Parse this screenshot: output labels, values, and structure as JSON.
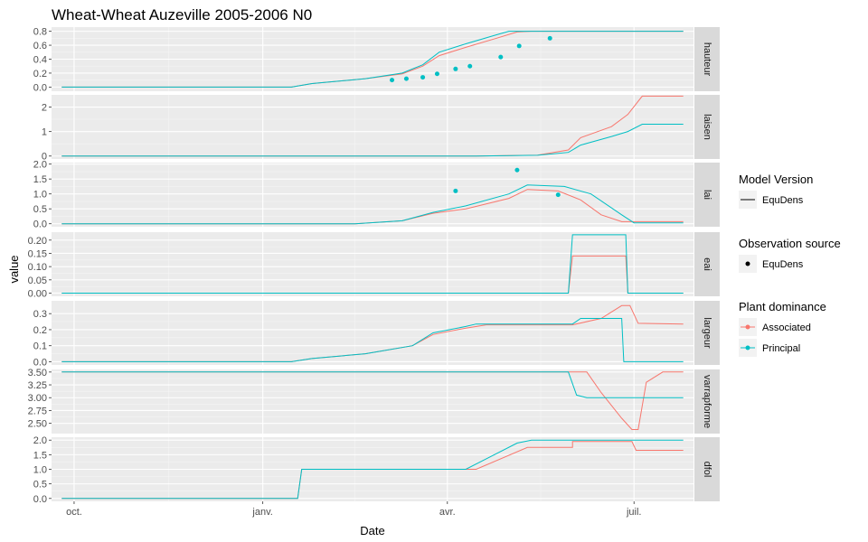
{
  "chart_data": {
    "type": "line",
    "title": "Wheat-Wheat Auzeville 2005-2006 N0",
    "xlabel": "Date",
    "ylabel": "value",
    "x_ticks": [
      "oct.",
      "janv.",
      "avr.",
      "juil."
    ],
    "x_tick_dates": [
      "2005-10-01",
      "2006-01-01",
      "2006-04-01",
      "2006-07-01"
    ],
    "xlim": [
      "2005-09-20",
      "2006-07-30"
    ],
    "grid": true,
    "legend_position": "right",
    "colors": {
      "Associated": "#F8766D",
      "Principal": "#00BFC4",
      "panel_bg": "#EBEBEB",
      "strip_bg": "#D9D9D9"
    },
    "legend": {
      "model_version": {
        "title": "Model Version",
        "items": [
          "EquDens"
        ]
      },
      "observation_source": {
        "title": "Observation source",
        "items": [
          "EquDens"
        ]
      },
      "plant_dominance": {
        "title": "Plant dominance",
        "items": [
          "Associated",
          "Principal"
        ]
      }
    },
    "panels": [
      {
        "name": "hauteur",
        "ylim": [
          -0.06,
          0.86
        ],
        "ticks": [
          0.0,
          0.2,
          0.4,
          0.6,
          0.8
        ],
        "tick_labels": [
          "0.0",
          "0.2",
          "0.4",
          "0.6",
          "0.8"
        ],
        "series": [
          {
            "name": "Associated",
            "points": [
              [
                "2005-09-25",
                0
              ],
              [
                "2006-01-15",
                0
              ],
              [
                "2006-01-25",
                0.05
              ],
              [
                "2006-02-20",
                0.12
              ],
              [
                "2006-03-10",
                0.19
              ],
              [
                "2006-03-20",
                0.3
              ],
              [
                "2006-03-28",
                0.45
              ],
              [
                "2006-04-10",
                0.57
              ],
              [
                "2006-04-25",
                0.7
              ],
              [
                "2006-05-05",
                0.79
              ],
              [
                "2006-05-12",
                0.8
              ],
              [
                "2006-07-25",
                0.8
              ]
            ]
          },
          {
            "name": "Principal",
            "points": [
              [
                "2005-09-25",
                0
              ],
              [
                "2006-01-15",
                0
              ],
              [
                "2006-01-25",
                0.05
              ],
              [
                "2006-02-20",
                0.12
              ],
              [
                "2006-03-10",
                0.2
              ],
              [
                "2006-03-20",
                0.32
              ],
              [
                "2006-03-28",
                0.5
              ],
              [
                "2006-04-10",
                0.62
              ],
              [
                "2006-04-25",
                0.75
              ],
              [
                "2006-05-01",
                0.8
              ],
              [
                "2006-07-25",
                0.8
              ]
            ]
          }
        ],
        "observations": [
          {
            "name": "Principal",
            "points": [
              [
                "2006-03-05",
                0.1
              ],
              [
                "2006-03-12",
                0.12
              ],
              [
                "2006-03-20",
                0.14
              ],
              [
                "2006-03-27",
                0.19
              ],
              [
                "2006-04-05",
                0.26
              ],
              [
                "2006-04-12",
                0.3
              ],
              [
                "2006-04-27",
                0.43
              ],
              [
                "2006-05-06",
                0.59
              ],
              [
                "2006-05-21",
                0.7
              ]
            ]
          }
        ]
      },
      {
        "name": "laisen",
        "ylim": [
          -0.12,
          2.5
        ],
        "ticks": [
          0,
          1,
          2
        ],
        "tick_labels": [
          "0",
          "1",
          "2"
        ],
        "series": [
          {
            "name": "Associated",
            "points": [
              [
                "2005-09-25",
                0
              ],
              [
                "2006-04-15",
                0
              ],
              [
                "2006-05-15",
                0.04
              ],
              [
                "2006-05-30",
                0.25
              ],
              [
                "2006-06-05",
                0.75
              ],
              [
                "2006-06-20",
                1.2
              ],
              [
                "2006-06-28",
                1.7
              ],
              [
                "2006-07-05",
                2.45
              ],
              [
                "2006-07-25",
                2.45
              ]
            ]
          },
          {
            "name": "Principal",
            "points": [
              [
                "2005-09-25",
                0
              ],
              [
                "2006-04-15",
                0
              ],
              [
                "2006-05-15",
                0.03
              ],
              [
                "2006-05-30",
                0.15
              ],
              [
                "2006-06-05",
                0.45
              ],
              [
                "2006-06-20",
                0.8
              ],
              [
                "2006-06-28",
                1.0
              ],
              [
                "2006-07-05",
                1.3
              ],
              [
                "2006-07-25",
                1.3
              ]
            ]
          }
        ]
      },
      {
        "name": "lai",
        "ylim": [
          -0.1,
          2.05
        ],
        "ticks": [
          0.0,
          0.5,
          1.0,
          1.5,
          2.0
        ],
        "tick_labels": [
          "0.0",
          "0.5",
          "1.0",
          "1.5",
          "2.0"
        ],
        "series": [
          {
            "name": "Associated",
            "points": [
              [
                "2005-09-25",
                0
              ],
              [
                "2006-02-15",
                0
              ],
              [
                "2006-03-10",
                0.1
              ],
              [
                "2006-03-25",
                0.35
              ],
              [
                "2006-04-10",
                0.5
              ],
              [
                "2006-05-01",
                0.85
              ],
              [
                "2006-05-10",
                1.15
              ],
              [
                "2006-05-25",
                1.1
              ],
              [
                "2006-06-05",
                0.8
              ],
              [
                "2006-06-15",
                0.3
              ],
              [
                "2006-06-25",
                0.07
              ],
              [
                "2006-07-25",
                0.07
              ]
            ]
          },
          {
            "name": "Principal",
            "points": [
              [
                "2005-09-25",
                0
              ],
              [
                "2006-02-15",
                0
              ],
              [
                "2006-03-10",
                0.1
              ],
              [
                "2006-03-25",
                0.38
              ],
              [
                "2006-04-10",
                0.6
              ],
              [
                "2006-05-01",
                1.0
              ],
              [
                "2006-05-10",
                1.3
              ],
              [
                "2006-05-28",
                1.25
              ],
              [
                "2006-06-10",
                1.0
              ],
              [
                "2006-06-25",
                0.3
              ],
              [
                "2006-07-01",
                0.03
              ],
              [
                "2006-07-25",
                0.03
              ]
            ]
          }
        ],
        "observations": [
          {
            "name": "Principal",
            "points": [
              [
                "2006-04-05",
                1.1
              ],
              [
                "2006-05-05",
                1.8
              ],
              [
                "2006-05-25",
                0.97
              ]
            ]
          }
        ]
      },
      {
        "name": "eai",
        "ylim": [
          -0.012,
          0.23
        ],
        "ticks": [
          0.0,
          0.05,
          0.1,
          0.15,
          0.2
        ],
        "tick_labels": [
          "0.00",
          "0.05",
          "0.10",
          "0.15",
          "0.20"
        ],
        "series": [
          {
            "name": "Associated",
            "points": [
              [
                "2005-09-25",
                0
              ],
              [
                "2006-05-30",
                0
              ],
              [
                "2006-06-01",
                0.14
              ],
              [
                "2006-06-27",
                0.14
              ],
              [
                "2006-06-28",
                0
              ],
              [
                "2006-07-25",
                0
              ]
            ]
          },
          {
            "name": "Principal",
            "points": [
              [
                "2005-09-25",
                0
              ],
              [
                "2006-05-30",
                0
              ],
              [
                "2006-06-01",
                0.22
              ],
              [
                "2006-06-27",
                0.22
              ],
              [
                "2006-06-28",
                0
              ],
              [
                "2006-07-25",
                0
              ]
            ]
          }
        ]
      },
      {
        "name": "largeur",
        "ylim": [
          -0.02,
          0.38
        ],
        "ticks": [
          0.0,
          0.1,
          0.2,
          0.3
        ],
        "tick_labels": [
          "0.0",
          "0.1",
          "0.2",
          "0.3"
        ],
        "series": [
          {
            "name": "Associated",
            "points": [
              [
                "2005-09-25",
                0
              ],
              [
                "2006-01-15",
                0
              ],
              [
                "2006-01-25",
                0.02
              ],
              [
                "2006-02-20",
                0.05
              ],
              [
                "2006-03-15",
                0.1
              ],
              [
                "2006-03-25",
                0.17
              ],
              [
                "2006-04-10",
                0.21
              ],
              [
                "2006-04-20",
                0.23
              ],
              [
                "2006-06-01",
                0.23
              ],
              [
                "2006-06-15",
                0.27
              ],
              [
                "2006-06-25",
                0.35
              ],
              [
                "2006-06-29",
                0.35
              ],
              [
                "2006-07-03",
                0.24
              ],
              [
                "2006-07-25",
                0.235
              ]
            ]
          },
          {
            "name": "Principal",
            "points": [
              [
                "2005-09-25",
                0
              ],
              [
                "2006-01-15",
                0
              ],
              [
                "2006-01-25",
                0.02
              ],
              [
                "2006-02-20",
                0.05
              ],
              [
                "2006-03-15",
                0.1
              ],
              [
                "2006-03-25",
                0.18
              ],
              [
                "2006-04-10",
                0.22
              ],
              [
                "2006-04-15",
                0.235
              ],
              [
                "2006-06-01",
                0.235
              ],
              [
                "2006-06-05",
                0.27
              ],
              [
                "2006-06-25",
                0.27
              ],
              [
                "2006-06-26",
                0
              ],
              [
                "2006-07-25",
                0
              ]
            ]
          }
        ]
      },
      {
        "name": "varrapforme",
        "ylim": [
          2.3,
          3.55
        ],
        "ticks": [
          2.5,
          2.75,
          3.0,
          3.25,
          3.5
        ],
        "tick_labels": [
          "2.50",
          "2.75",
          "3.00",
          "3.25",
          "3.50"
        ],
        "series": [
          {
            "name": "Associated",
            "points": [
              [
                "2005-09-25",
                3.5
              ],
              [
                "2006-06-01",
                3.5
              ],
              [
                "2006-06-08",
                3.5
              ],
              [
                "2006-06-15",
                3.1
              ],
              [
                "2006-06-25",
                2.6
              ],
              [
                "2006-06-30",
                2.38
              ],
              [
                "2006-07-03",
                2.38
              ],
              [
                "2006-07-07",
                3.3
              ],
              [
                "2006-07-15",
                3.5
              ],
              [
                "2006-07-25",
                3.5
              ]
            ]
          },
          {
            "name": "Principal",
            "points": [
              [
                "2005-09-25",
                3.5
              ],
              [
                "2006-05-30",
                3.5
              ],
              [
                "2006-06-03",
                3.05
              ],
              [
                "2006-06-08",
                3.0
              ],
              [
                "2006-07-25",
                3.0
              ]
            ]
          }
        ]
      },
      {
        "name": "dfol",
        "ylim": [
          -0.1,
          2.1
        ],
        "ticks": [
          0.0,
          0.5,
          1.0,
          1.5,
          2.0
        ],
        "tick_labels": [
          "0.0",
          "0.5",
          "1.0",
          "1.5",
          "2.0"
        ],
        "series": [
          {
            "name": "Associated",
            "points": [
              [
                "2005-09-25",
                0
              ],
              [
                "2006-01-18",
                0
              ],
              [
                "2006-01-20",
                1
              ],
              [
                "2006-04-15",
                1
              ],
              [
                "2006-05-10",
                1.75
              ],
              [
                "2006-05-12",
                1.75
              ],
              [
                "2006-06-01",
                1.75
              ],
              [
                "2006-06-01",
                1.95
              ],
              [
                "2006-06-30",
                1.95
              ],
              [
                "2006-07-02",
                1.65
              ],
              [
                "2006-07-25",
                1.65
              ]
            ]
          },
          {
            "name": "Principal",
            "points": [
              [
                "2005-09-25",
                0
              ],
              [
                "2006-01-18",
                0
              ],
              [
                "2006-01-20",
                1
              ],
              [
                "2006-04-10",
                1
              ],
              [
                "2006-05-05",
                1.9
              ],
              [
                "2006-05-12",
                2.0
              ],
              [
                "2006-07-25",
                2.0
              ]
            ]
          }
        ]
      }
    ]
  }
}
